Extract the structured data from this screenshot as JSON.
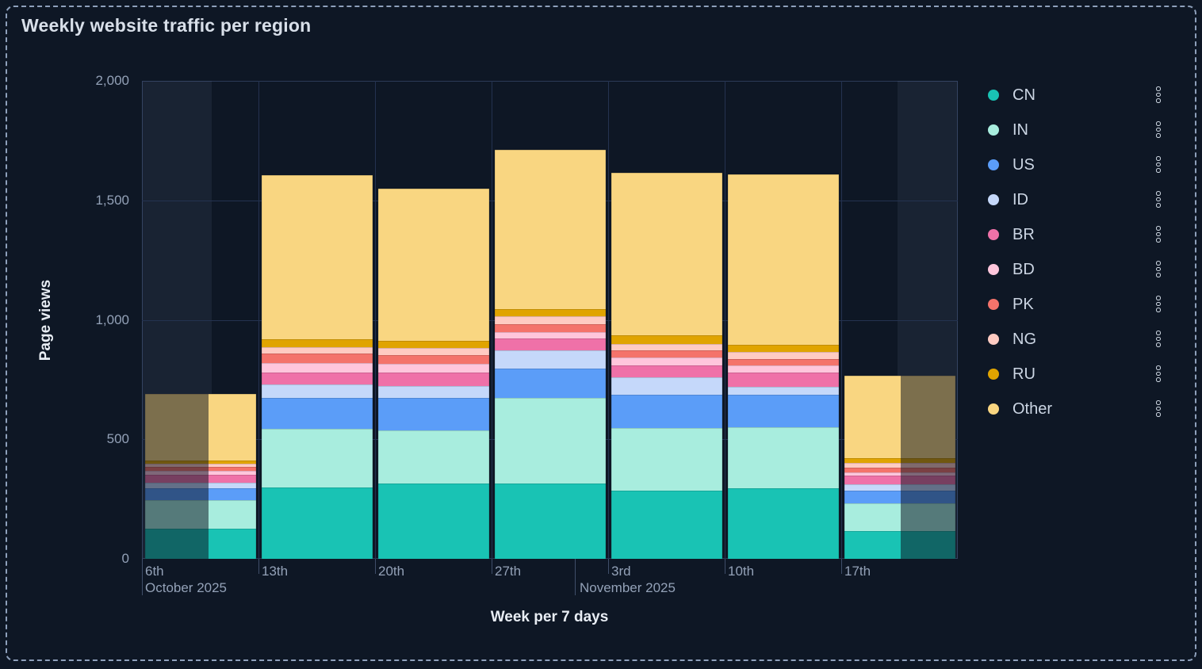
{
  "panel": {
    "title": "Weekly website traffic per region"
  },
  "chart_data": {
    "type": "bar",
    "stacked": true,
    "title": "Weekly website traffic per region",
    "xlabel": "Week per 7 days",
    "ylabel": "Page views",
    "ylim": [
      0,
      2000
    ],
    "grid": true,
    "legend_position": "right",
    "y_ticks": [
      {
        "value": 0,
        "label": "0"
      },
      {
        "value": 500,
        "label": "500"
      },
      {
        "value": 1000,
        "label": "1,000"
      },
      {
        "value": 1500,
        "label": "1,500"
      },
      {
        "value": 2000,
        "label": "2,000"
      }
    ],
    "categories": [
      "6th",
      "13th",
      "20th",
      "27th",
      "3rd",
      "10th",
      "17th"
    ],
    "month_labels": [
      {
        "text": "October 2025",
        "under_category": "6th"
      },
      {
        "text": "November 2025",
        "under_category": "3rd"
      }
    ],
    "series": [
      {
        "name": "CN",
        "color": "#19c3b4",
        "values": [
          125,
          300,
          315,
          315,
          285,
          295,
          115
        ]
      },
      {
        "name": "IN",
        "color": "#a8edde",
        "values": [
          120,
          245,
          222,
          360,
          261,
          256,
          117
        ]
      },
      {
        "name": "US",
        "color": "#5b9df8",
        "values": [
          50,
          130,
          135,
          122,
          142,
          135,
          52
        ]
      },
      {
        "name": "ID",
        "color": "#c5d8fa",
        "values": [
          25,
          55,
          51,
          74,
          72,
          34,
          27
        ]
      },
      {
        "name": "BR",
        "color": "#ef71a8",
        "values": [
          33,
          50,
          58,
          51,
          50,
          58,
          36
        ]
      },
      {
        "name": "BD",
        "color": "#ffc6dc",
        "values": [
          16,
          40,
          34,
          27,
          33,
          30,
          14
        ]
      },
      {
        "name": "PK",
        "color": "#f4736b",
        "values": [
          17,
          38,
          36,
          33,
          28,
          28,
          22
        ]
      },
      {
        "name": "NG",
        "color": "#ffcbc2",
        "values": [
          12,
          28,
          30,
          33,
          28,
          31,
          17
        ]
      },
      {
        "name": "RU",
        "color": "#e0a400",
        "values": [
          14,
          33,
          31,
          29,
          38,
          30,
          20
        ]
      },
      {
        "name": "Other",
        "color": "#f9d681",
        "values": [
          278,
          686,
          638,
          666,
          678,
          713,
          345
        ]
      }
    ],
    "partial_weeks": [
      {
        "category": "6th",
        "dimmed_side": "left",
        "dimmed_fraction": 0.575
      },
      {
        "category": "17th",
        "dimmed_side": "right",
        "dimmed_fraction": 0.49
      }
    ]
  },
  "legend": {
    "items": [
      "CN",
      "IN",
      "US",
      "ID",
      "BR",
      "BD",
      "PK",
      "NG",
      "RU",
      "Other"
    ],
    "row_menu_icon": "kebab-vertical-dots"
  }
}
